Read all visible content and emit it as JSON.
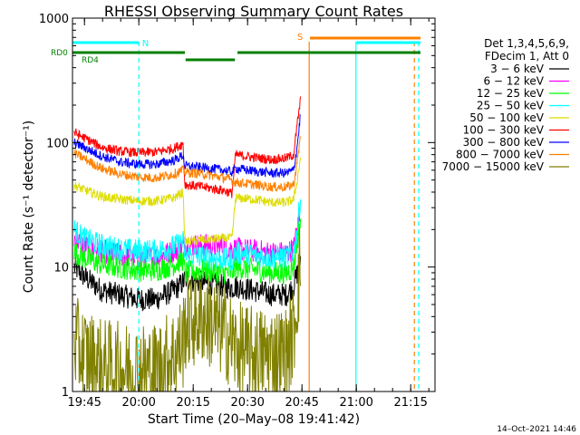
{
  "chart_data": {
    "type": "line",
    "title": "RHESSI Observing Summary Count Rates",
    "xlabel": "Start Time (20–May–08 19:41:42)",
    "ylabel": "Count Rate (s⁻¹ detector⁻¹)",
    "yscale": "log",
    "ylim": [
      1,
      1000
    ],
    "xlim_minutes": [
      0,
      100
    ],
    "x_ticks": [
      {
        "label": "19:45",
        "min": 3.3
      },
      {
        "label": "20:00",
        "min": 18.3
      },
      {
        "label": "20:15",
        "min": 33.3
      },
      {
        "label": "20:30",
        "min": 48.3
      },
      {
        "label": "20:45",
        "min": 63.3
      },
      {
        "label": "21:00",
        "min": 78.3
      },
      {
        "label": "21:15",
        "min": 93.3
      }
    ],
    "y_ticks": [
      {
        "label": "1",
        "v": 1
      },
      {
        "label": "10",
        "v": 10
      },
      {
        "label": "100",
        "v": 100
      },
      {
        "label": "1000",
        "v": 1000
      }
    ],
    "legend_header": [
      "Det 1,3,4,5,6,9,",
      "FDecim 1, Att 0"
    ],
    "series": [
      {
        "name": "3 − 6 keV",
        "color": "#000000",
        "x": [
          0.5,
          3,
          8,
          13,
          18,
          23,
          28,
          30.5,
          31,
          36,
          42,
          44,
          45,
          50,
          55,
          59,
          61,
          62,
          63
        ],
        "y": [
          10,
          8.5,
          6.5,
          6,
          5.5,
          5.5,
          6.5,
          7.5,
          8,
          7.5,
          7,
          6.8,
          7,
          6.5,
          6,
          6,
          7,
          9,
          12
        ]
      },
      {
        "name": "6 − 12 keV",
        "color": "#ff00ff",
        "x": [
          0.5,
          3,
          8,
          13,
          18,
          23,
          28,
          30.5,
          31,
          36,
          42,
          44,
          45,
          50,
          55,
          59,
          61,
          62,
          63
        ],
        "y": [
          17,
          15,
          13.5,
          12.5,
          12,
          12,
          13.5,
          14.5,
          15,
          15,
          14.5,
          14,
          14,
          13.5,
          13,
          13,
          14,
          20,
          30
        ]
      },
      {
        "name": "12 − 25 keV",
        "color": "#00ff00",
        "x": [
          0.5,
          3,
          8,
          13,
          18,
          23,
          28,
          30.5,
          31,
          36,
          42,
          44,
          45,
          50,
          55,
          59,
          61,
          62,
          63
        ],
        "y": [
          13,
          12,
          10.5,
          10,
          9.5,
          9.5,
          10.5,
          11.5,
          9,
          9.5,
          9,
          9,
          10,
          9.5,
          9,
          9,
          10,
          16,
          25
        ]
      },
      {
        "name": "25 − 50 keV",
        "color": "#00ffff",
        "x": [
          0.5,
          3,
          8,
          13,
          18,
          23,
          28,
          30.5,
          31,
          36,
          42,
          44,
          45,
          50,
          55,
          59,
          61,
          62,
          63
        ],
        "y": [
          20,
          17,
          15,
          14,
          13.5,
          13.5,
          14.5,
          16,
          12.5,
          12,
          11.5,
          11.5,
          13,
          12.5,
          12,
          12,
          13,
          20,
          40
        ]
      },
      {
        "name": "50 − 100 keV",
        "color": "#dddd00",
        "x": [
          0.5,
          3,
          8,
          13,
          18,
          23,
          28,
          30.5,
          31,
          36,
          42,
          44,
          45,
          50,
          55,
          59,
          61,
          62,
          63
        ],
        "y": [
          45,
          42,
          37,
          35,
          34,
          34,
          36,
          40,
          16,
          16.5,
          17,
          17,
          36,
          35,
          33,
          33,
          35,
          50,
          80
        ]
      },
      {
        "name": "100 − 300 keV",
        "color": "#ff0000",
        "x": [
          0.5,
          3,
          8,
          13,
          18,
          23,
          28,
          30.5,
          31,
          36,
          42,
          44,
          45,
          50,
          55,
          59,
          61,
          62,
          63
        ],
        "y": [
          120,
          110,
          92,
          85,
          83,
          84,
          90,
          98,
          46,
          44,
          41,
          39,
          80,
          76,
          73,
          75,
          80,
          140,
          230
        ]
      },
      {
        "name": "300 − 800 keV",
        "color": "#0000ff",
        "x": [
          0.5,
          3,
          8,
          13,
          18,
          23,
          28,
          30.5,
          31,
          36,
          42,
          44,
          45,
          50,
          55,
          59,
          61,
          62,
          63
        ],
        "y": [
          100,
          92,
          78,
          70,
          67,
          67,
          72,
          79,
          65,
          63,
          60,
          58,
          62,
          59,
          57,
          57,
          60,
          95,
          180
        ]
      },
      {
        "name": "800 − 7000 keV",
        "color": "#ff8000",
        "x": [
          0.5,
          3,
          8,
          13,
          18,
          23,
          28,
          30.5,
          31,
          36,
          42,
          44,
          45,
          50,
          55,
          59,
          61,
          62,
          63
        ],
        "y": [
          82,
          75,
          62,
          56,
          53,
          52,
          56,
          60,
          58,
          56,
          52,
          50,
          48,
          46,
          44,
          44,
          46,
          70,
          120
        ]
      },
      {
        "name": "7000 − 15000 keV",
        "color": "#808000",
        "x": [
          0.5,
          3,
          8,
          13,
          18,
          23,
          28,
          30.5,
          31,
          36,
          42,
          44,
          45,
          50,
          55,
          59,
          61,
          62,
          63
        ],
        "y": [
          2.5,
          2,
          1.6,
          1.5,
          1.5,
          1.5,
          2,
          2.5,
          3.5,
          4,
          3,
          2.5,
          2.2,
          2,
          2,
          2,
          3,
          6,
          12
        ]
      }
    ],
    "state_bars": [
      {
        "label": "N",
        "color": "#00ffff",
        "segments": [
          [
            0,
            18.2
          ]
        ]
      },
      {
        "label": "S",
        "color": "#ff8000",
        "segments": [
          [
            65.5,
            96
          ]
        ]
      },
      {
        "label": "RD0",
        "color": "#008000",
        "segments": [
          [
            0,
            31
          ],
          [
            45.5,
            96
          ]
        ]
      },
      {
        "label": "RD4",
        "color": "#008000",
        "segments": [
          [
            31.2,
            44.8
          ]
        ]
      }
    ],
    "extra_states": {
      "right_cyan_segment": [
        78.3,
        96
      ]
    },
    "vertical_markers": [
      {
        "min": 18.3,
        "color": "#00ffff",
        "style": "dashed"
      },
      {
        "min": 65.3,
        "color": "#ff8000",
        "style": "solid"
      },
      {
        "min": 78.2,
        "color": "#00ffff",
        "style": "solid"
      },
      {
        "min": 94.3,
        "color": "#ff8000",
        "style": "dashed"
      },
      {
        "min": 95.5,
        "color": "#00ffff",
        "style": "dashed"
      }
    ]
  },
  "footer_date": "14–Oct–2021 14:46"
}
